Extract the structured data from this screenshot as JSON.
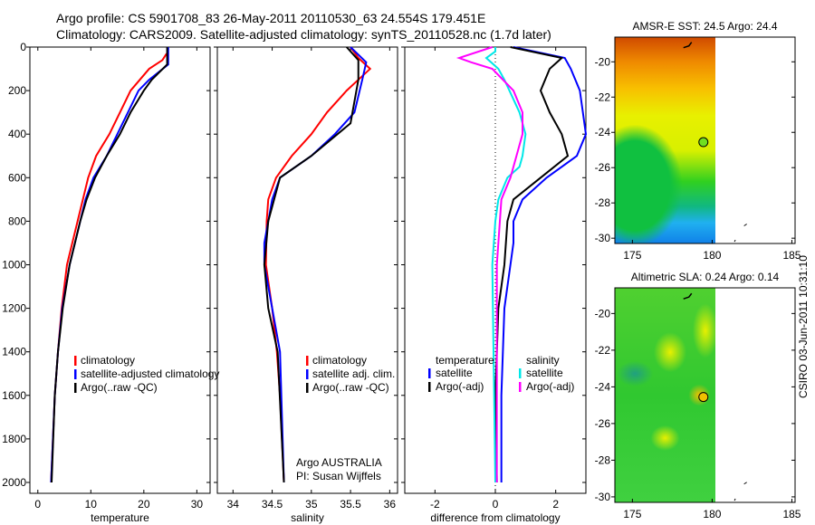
{
  "title_line1": "Argo profile: CS 5901708_83 26-May-2011 20110530_63 24.554S 179.451E",
  "title_line2": "Climatology: CARS2009. Satellite-adjusted climatology: synTS_20110528.nc (1.7d later)",
  "side_label": "CSIRO 03-Jun-2011 10:31:10",
  "colors": {
    "red": "#ff0000",
    "blue": "#0000ff",
    "black": "#000000",
    "cyan": "#00e8e8",
    "magenta": "#ff00ff"
  },
  "chart_data": [
    {
      "type": "line",
      "xlabel": "temperature",
      "ylabel": "",
      "xlim": [
        -1.5,
        32.5
      ],
      "ylim": [
        2050,
        0
      ],
      "xticks": [
        0,
        10,
        20,
        30
      ],
      "yticks": [
        0,
        200,
        400,
        600,
        800,
        1000,
        1200,
        1400,
        1600,
        1800,
        2000
      ],
      "legend": {
        "placement": "bottom-right",
        "entries": [
          "climatology",
          "satellite-adjusted climatology",
          "Argo(..raw -QC)"
        ]
      },
      "series": [
        {
          "name": "climatology",
          "color": "red",
          "depth": [
            30,
            60,
            100,
            200,
            300,
            400,
            500,
            600,
            700,
            800,
            1000,
            1200,
            1400,
            1600,
            2000
          ],
          "values": [
            24.3,
            23.5,
            21,
            17.5,
            15.5,
            13.5,
            11,
            9.5,
            8.5,
            7.5,
            5.5,
            4.5,
            3.8,
            3.2,
            2.5
          ]
        },
        {
          "name": "satellite-adjusted climatology",
          "color": "blue",
          "depth": [
            0,
            80,
            150,
            200,
            300,
            400,
            500,
            600,
            700,
            800,
            1000,
            1200,
            1400,
            1600,
            2000
          ],
          "values": [
            24.6,
            24.6,
            21,
            19,
            17,
            15,
            13,
            10.5,
            9,
            8,
            6,
            4.6,
            3.8,
            3.2,
            2.5
          ]
        },
        {
          "name": "Argo(..raw -QC)",
          "color": "black",
          "depth": [
            0,
            80,
            150,
            200,
            300,
            400,
            500,
            600,
            700,
            800,
            1000,
            1200,
            1400,
            1600,
            2000
          ],
          "values": [
            24.4,
            24.4,
            21.5,
            20,
            17.5,
            15.5,
            13,
            10.8,
            9.2,
            8,
            6,
            4.7,
            3.8,
            3.2,
            2.6
          ]
        }
      ]
    },
    {
      "type": "line",
      "xlabel": "salinity",
      "xlim": [
        33.8,
        36.1
      ],
      "ylim": [
        2050,
        0
      ],
      "xticks": [
        34,
        34.5,
        35,
        35.5,
        36
      ],
      "xticklabels": [
        "34",
        "34.5",
        "35",
        "35.5",
        "36"
      ],
      "legend": {
        "placement": "bottom-right",
        "entries": [
          "climatology",
          "satellite adj. clim.",
          "Argo(..raw -QC)"
        ]
      },
      "annotation": [
        "Argo AUSTRALIA",
        "PI: Susan Wijffels"
      ],
      "series": [
        {
          "name": "climatology",
          "color": "red",
          "depth": [
            0,
            50,
            100,
            150,
            200,
            300,
            400,
            500,
            600,
            700,
            800,
            1000,
            1200,
            1400,
            1600,
            2000
          ],
          "values": [
            35.5,
            35.6,
            35.75,
            35.6,
            35.45,
            35.2,
            35.0,
            34.75,
            34.55,
            34.45,
            34.43,
            34.42,
            34.5,
            34.56,
            34.6,
            34.65
          ]
        },
        {
          "name": "satellite adj. clim.",
          "color": "blue",
          "depth": [
            0,
            70,
            150,
            300,
            400,
            500,
            600,
            700,
            800,
            900,
            1000,
            1200,
            1400,
            2000
          ],
          "values": [
            35.5,
            35.7,
            35.65,
            35.55,
            35.3,
            35.0,
            34.6,
            34.5,
            34.45,
            34.4,
            34.4,
            34.5,
            34.6,
            34.65
          ]
        },
        {
          "name": "Argo(..raw -QC)",
          "color": "black",
          "depth": [
            0,
            60,
            150,
            350,
            500,
            600,
            800,
            1000,
            1200,
            1400,
            2000
          ],
          "values": [
            35.45,
            35.6,
            35.6,
            35.5,
            35.0,
            34.6,
            34.45,
            34.4,
            34.45,
            34.57,
            34.65
          ]
        }
      ]
    },
    {
      "type": "line",
      "xlabel": "difference from climatology",
      "xlim": [
        -3,
        3
      ],
      "ylim": [
        2050,
        0
      ],
      "xticks": [
        -2,
        0,
        2
      ],
      "legend": {
        "placement": "bottom",
        "temp_header": "temperature",
        "sal_header": "salinity",
        "entries": [
          "satellite",
          "Argo(-adj)",
          "satellite",
          "Argo(-adj)"
        ]
      },
      "series": [
        {
          "name": "temperature satellite",
          "color": "blue",
          "depth": [
            0,
            50,
            100,
            200,
            300,
            400,
            500,
            600,
            700,
            800,
            900,
            1000,
            1100,
            1200,
            1400,
            1600,
            2000
          ],
          "values": [
            0.6,
            2.3,
            2.5,
            2.8,
            2.9,
            3,
            2.7,
            1.7,
            0.9,
            0.6,
            0.6,
            0.5,
            0.4,
            0.3,
            0.25,
            0.2,
            0.2
          ]
        },
        {
          "name": "temperature Argo(-adj)",
          "color": "black",
          "depth": [
            0,
            50,
            100,
            200,
            300,
            400,
            500,
            600,
            700,
            800,
            1000,
            1200,
            1600,
            2000
          ],
          "values": [
            0.5,
            2.2,
            1.8,
            1.5,
            1.8,
            2.2,
            2.4,
            1.5,
            0.6,
            0.4,
            0.3,
            0.1,
            0,
            0.05
          ]
        },
        {
          "name": "salinity satellite",
          "color": "cyan",
          "depth": [
            0,
            20,
            50,
            100,
            150,
            300,
            400,
            500,
            550,
            600,
            700,
            800,
            1000,
            2000
          ],
          "values": [
            0,
            0,
            -0.3,
            0.1,
            0.3,
            0.8,
            1.0,
            0.9,
            0.8,
            0.4,
            0.1,
            0,
            -0.1,
            0
          ]
        },
        {
          "name": "salinity Argo(-adj)",
          "color": "magenta",
          "depth": [
            0,
            50,
            70,
            100,
            200,
            300,
            400,
            500,
            600,
            700,
            900,
            1000,
            2000
          ],
          "values": [
            -0.1,
            -1.2,
            -0.8,
            -0.1,
            0.6,
            0.9,
            0.9,
            0.7,
            0.5,
            0.2,
            0.1,
            0.05,
            0.05
          ]
        }
      ]
    },
    {
      "type": "heatmap",
      "title": "AMSR-E SST: 24.5 Argo: 24.4",
      "xlim": [
        173.9,
        185.2
      ],
      "ylim": [
        -30.3,
        -18.6
      ],
      "xticks": [
        175,
        180,
        185
      ],
      "yticks": [
        -20,
        -22,
        -24,
        -26,
        -28,
        -30
      ],
      "marker": {
        "lon": 179.451,
        "lat": -24.554
      }
    },
    {
      "type": "heatmap",
      "title": "Altimetric SLA: 0.24 Argo: 0.14",
      "xlim": [
        173.9,
        185.2
      ],
      "ylim": [
        -30.3,
        -18.6
      ],
      "xticks": [
        175,
        180,
        185
      ],
      "yticks": [
        -20,
        -22,
        -24,
        -26,
        -28,
        -30
      ],
      "marker": {
        "lon": 179.451,
        "lat": -24.554
      }
    }
  ]
}
